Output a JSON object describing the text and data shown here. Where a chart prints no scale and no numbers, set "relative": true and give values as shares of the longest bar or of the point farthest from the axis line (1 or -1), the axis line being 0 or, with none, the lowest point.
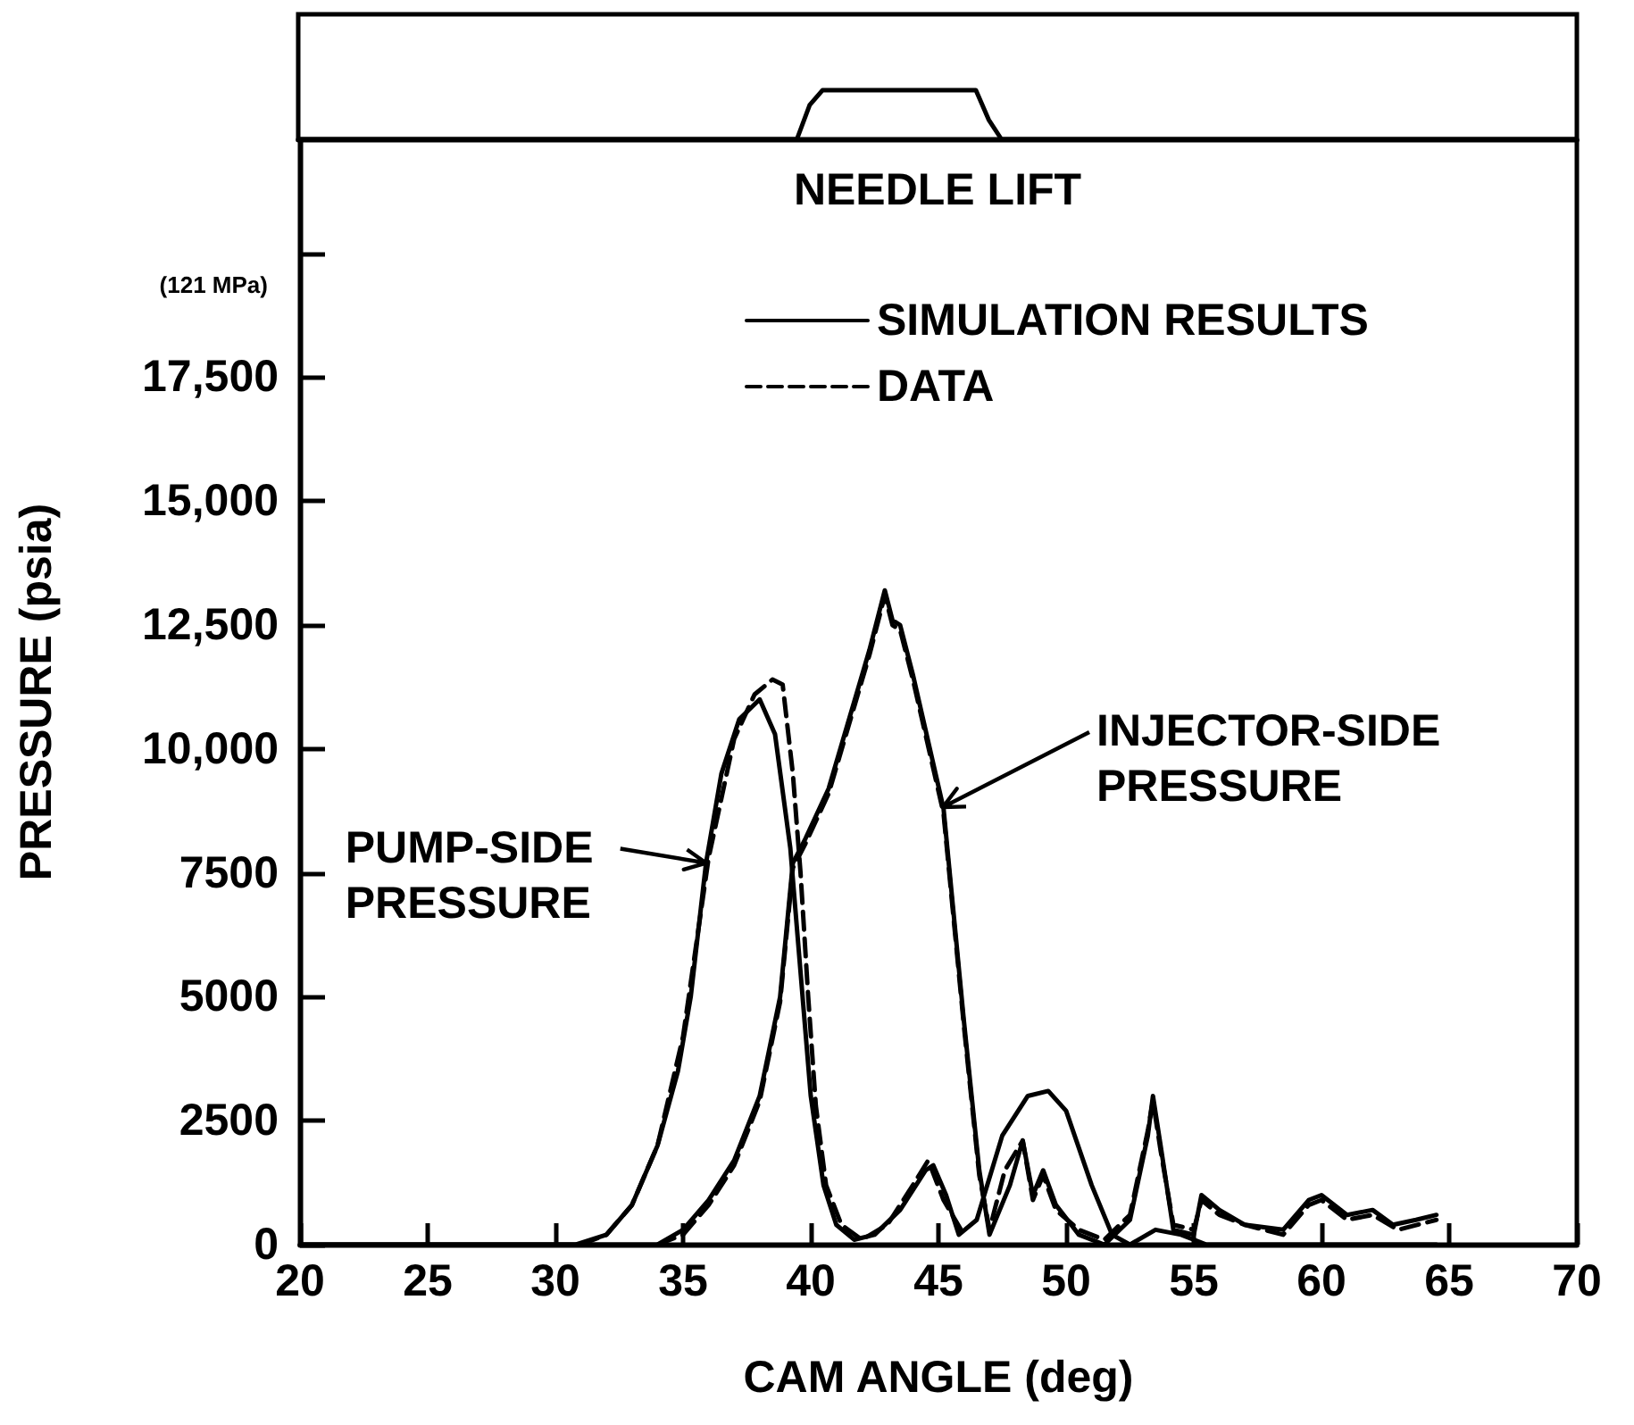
{
  "chart_data": [
    {
      "type": "line",
      "xlabel": "NEEDLE LIFT",
      "relative": true,
      "legend": false,
      "marker": "none",
      "categories": [
        null,
        null,
        null,
        null,
        null,
        null,
        null,
        null,
        null,
        null,
        null,
        null,
        null,
        null,
        null,
        null,
        null,
        null,
        null,
        null,
        null,
        null,
        null,
        null,
        null,
        null,
        null,
        null,
        null,
        null,
        null,
        null,
        null,
        null,
        null,
        null,
        null,
        null,
        null,
        null,
        null,
        null,
        null,
        null,
        null,
        null,
        null,
        null,
        null,
        null,
        null,
        null,
        null,
        null,
        null,
        null,
        null,
        null,
        null,
        null,
        null,
        null,
        null,
        null,
        null,
        null,
        null,
        null,
        null,
        null,
        null,
        null,
        null,
        null,
        null,
        null,
        null,
        null,
        null,
        null,
        null,
        null,
        null,
        null,
        null,
        null,
        null,
        null,
        null,
        null,
        null,
        null,
        null,
        null,
        null,
        null,
        null,
        null,
        null,
        null,
        null
      ],
      "series": [
        {
          "color": "#000000",
          "line_style": "solid",
          "values": [
            0,
            0,
            0,
            0,
            0,
            0,
            0,
            0,
            0,
            0,
            0,
            0,
            0,
            0,
            0,
            0,
            0,
            0,
            0,
            0,
            0,
            0,
            0,
            0,
            0,
            0,
            0,
            0,
            0,
            0,
            0,
            0,
            0,
            0,
            0,
            0,
            0,
            0,
            0,
            0,
            0.7,
            1,
            1,
            1,
            1,
            1,
            1,
            1,
            1,
            1,
            1,
            1,
            1,
            1,
            0.4,
            0,
            0,
            0,
            0,
            0,
            0,
            0,
            0,
            0,
            0,
            0,
            0,
            0,
            0,
            0,
            0,
            0,
            0,
            0,
            0,
            0,
            0,
            0,
            0,
            0,
            0,
            0,
            0,
            0,
            0,
            0,
            0,
            0,
            0,
            0,
            0,
            0,
            0,
            0,
            0,
            0,
            0,
            0,
            0,
            0,
            0
          ]
        }
      ]
    },
    {
      "type": "line",
      "xlabel": "CAM ANGLE (deg)",
      "ylabel": "PRESSURE (psia)",
      "xlim": [
        20,
        70
      ],
      "xticks": [
        20,
        25,
        30,
        35,
        40,
        45,
        50,
        55,
        60,
        65,
        70
      ],
      "ylim": [
        0,
        22300
      ],
      "yticks": [
        0,
        2500,
        5000,
        7500,
        {
          "value": 10000,
          "label": "10,000"
        },
        {
          "value": 12500,
          "label": "12,500"
        },
        {
          "value": 15000,
          "label": "15,000"
        },
        {
          "value": 17500,
          "label": "17,500"
        },
        {
          "value": 20000,
          "label": null
        }
      ],
      "grid": false,
      "legend": "top right",
      "marker": "none",
      "annotations": [
        "(121 MPa)",
        {
          "text": "PUMP-SIDE PRESSURE",
          "x": 35.9,
          "y": 7700
        },
        "INJECTOR-SIDE PRESSURE"
      ],
      "series": [
        {
          "name": "SIMULATION RESULTS",
          "color": "#000000",
          "line_style": "solid",
          "x": [
            20,
            30.8,
            32,
            33,
            34,
            34.8,
            35.3,
            35.9,
            36.5,
            37.2,
            38,
            38.6,
            39.2,
            39.6,
            40,
            40.5,
            41,
            41.7,
            42.5,
            43.5,
            44.5,
            44.8,
            45.3,
            45.8,
            46.5,
            47.5,
            48.5,
            49.3,
            50,
            51,
            51.8,
            52.5,
            53.5,
            54.5,
            55.5,
            57,
            60,
            64.5
          ],
          "values": [
            0,
            0,
            200,
            800,
            2000,
            3500,
            5000,
            7700,
            9500,
            10600,
            11000,
            10300,
            8000,
            5500,
            3000,
            1200,
            400,
            100,
            200,
            700,
            1500,
            1600,
            1000,
            200,
            500,
            2200,
            3000,
            3100,
            2700,
            1200,
            200,
            0,
            300,
            200,
            0,
            0,
            0,
            0
          ]
        },
        {
          "name": "DATA",
          "color": "#000000",
          "line_style": "dashed",
          "x": [
            31,
            32,
            33,
            34,
            35,
            36,
            37,
            37.8,
            38.5,
            38.9,
            39.3,
            39.6,
            39.9,
            40.2,
            40.6,
            41.2,
            42,
            43,
            44,
            44.6,
            45.2,
            46
          ],
          "values": [
            0,
            200,
            800,
            2000,
            4200,
            7800,
            10200,
            11100,
            11400,
            11300,
            9500,
            7500,
            5000,
            2800,
            1200,
            400,
            100,
            400,
            1200,
            1700,
            900,
            200
          ]
        },
        {
          "color": "#000000",
          "line_style": "solid",
          "x": [
            20,
            34,
            35,
            36,
            37,
            38,
            38.8,
            39.3,
            39.8,
            40.7,
            41.5,
            42.3,
            42.9,
            43.2,
            43.5,
            44,
            45.2,
            46,
            46.6,
            47,
            47.8,
            48.3,
            48.7,
            49.1,
            49.6,
            50.5,
            51.5,
            52.5,
            53.2,
            53.4,
            53.7,
            54.2,
            55,
            55.3,
            56,
            57,
            58.5,
            59.5,
            60,
            61,
            62,
            62.8,
            63.7,
            64.5
          ],
          "values": [
            0,
            0,
            300,
            900,
            1700,
            3000,
            5000,
            7700,
            8200,
            9200,
            10600,
            12000,
            13200,
            12600,
            12500,
            11500,
            8800,
            4500,
            1500,
            200,
            1200,
            2100,
            1000,
            1500,
            800,
            200,
            0,
            500,
            2200,
            3000,
            2000,
            300,
            200,
            1000,
            700,
            400,
            300,
            900,
            1000,
            600,
            700,
            400,
            500,
            600
          ]
        },
        {
          "color": "#000000",
          "line_style": "dashed",
          "x": [
            34,
            35,
            36,
            37,
            38,
            38.8,
            39.3,
            39.8,
            40.7,
            41.5,
            42.3,
            42.9,
            43.2,
            43.5,
            44,
            45.2,
            46,
            46.6,
            47,
            47.6,
            48.3,
            48.7,
            49.1,
            49.6,
            50.5,
            51.5,
            52.5,
            53.2,
            53.4,
            53.7,
            54.2,
            55,
            55.3,
            56,
            57,
            58.5,
            59.5,
            60,
            61,
            62,
            63,
            64.5
          ],
          "values": [
            0,
            200,
            800,
            1600,
            2900,
            4900,
            7600,
            8100,
            9100,
            10500,
            11900,
            13100,
            12500,
            12400,
            11400,
            8700,
            4400,
            1400,
            300,
            1500,
            2100,
            900,
            1400,
            700,
            300,
            100,
            600,
            2300,
            2900,
            1900,
            400,
            300,
            900,
            600,
            400,
            200,
            800,
            900,
            500,
            600,
            300,
            500
          ]
        }
      ]
    }
  ]
}
